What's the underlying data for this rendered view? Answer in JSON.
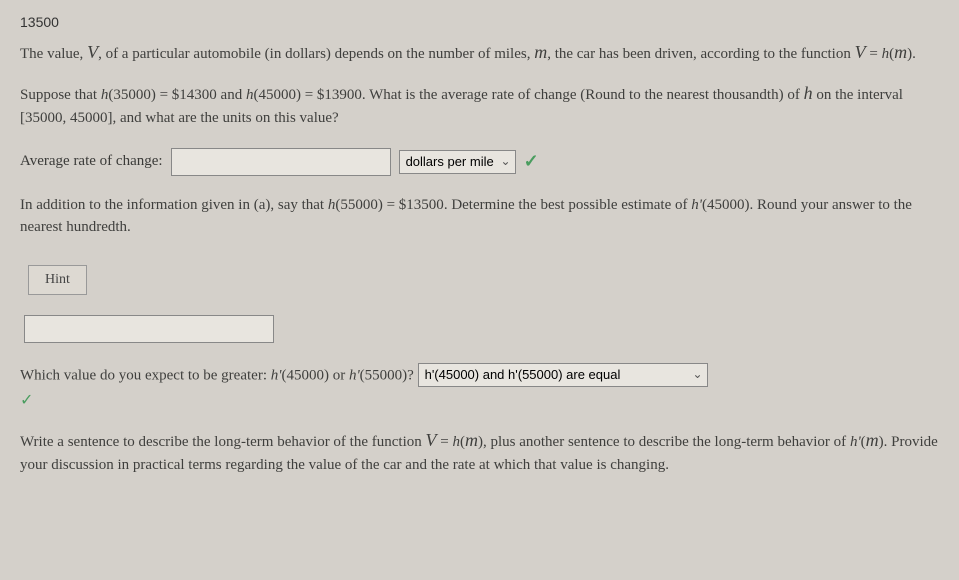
{
  "top_number": "13500",
  "intro": {
    "part1": "The value, ",
    "var1": "V",
    "part2": ", of a particular automobile (in dollars) depends on the number of miles, ",
    "var2": "m",
    "part3": ", the car has been driven, according to the function ",
    "eq": "V = h(m)",
    "part4": "."
  },
  "suppose": {
    "part1": "Suppose that ",
    "fn1": "h(35000) = $14300",
    "part2": " and ",
    "fn2": "h(45000) = $13900",
    "part3": ". What is the average rate of change (Round to the nearest thousandth) of ",
    "var_h": "h",
    "part4": " on the interval ",
    "interval": "[35000, 45000]",
    "part5": ", and what are the units on this value?"
  },
  "avg_rate": {
    "label": "Average rate of change:",
    "input_value": "",
    "units_selected": "dollars per mile"
  },
  "addition": {
    "part1": "In addition to the information given in (a), say that ",
    "fn3": "h(55000) = $13500",
    "part2": ". Determine the best possible estimate of ",
    "hprime": "h'(45000)",
    "part3": ". Round your answer to the nearest hundredth."
  },
  "hint_label": "Hint",
  "estimate_input": "",
  "compare": {
    "part1": "Which value do you expect to be greater: ",
    "v1": "h'(45000)",
    "part2": " or ",
    "v2": "h'(55000)",
    "part3": "? ",
    "selected": "h'(45000) and h'(55000) are equal"
  },
  "longterm": {
    "part1": "Write a sentence to describe the long-term behavior of the function ",
    "eq": "V = h(m)",
    "part2": ", plus another sentence to describe the long-term behavior of ",
    "hprime": "h'(m)",
    "part3": ". Provide your discussion in practical terms regarding the value of the car and the rate at which that value is changing."
  }
}
